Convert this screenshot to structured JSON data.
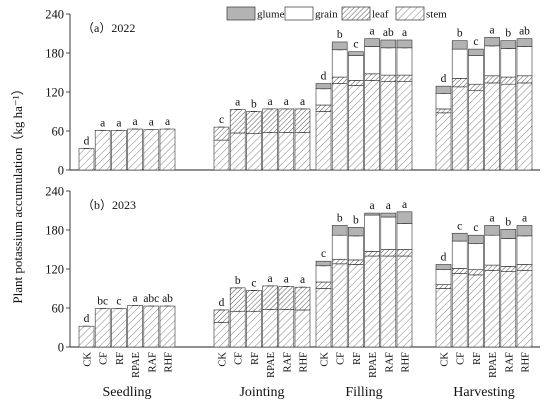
{
  "chart_data": {
    "type": "bar",
    "ylabel": "Plant potassium accumulation（kg ha⁻¹）",
    "ylim": [
      0,
      240
    ],
    "yticks": [
      0,
      60,
      120,
      180,
      240
    ],
    "legend": {
      "placement": "top",
      "items": [
        {
          "key": "glume",
          "label": "glume"
        },
        {
          "key": "grain",
          "label": "grain"
        },
        {
          "key": "leaf",
          "label": "leaf"
        },
        {
          "key": "stem",
          "label": "stem"
        }
      ]
    },
    "treatments": [
      "CK",
      "CF",
      "RF",
      "RPAE",
      "RAF",
      "RHF"
    ],
    "stages": [
      "Seedling",
      "Jointing",
      "Filling",
      "Harvesting"
    ],
    "colors": {
      "glume": "#b3b3b3",
      "grain": "#ffffff",
      "leaf": "#ffffff",
      "stem": "#ffffff",
      "hatch": "#555555",
      "outline": "#333333"
    },
    "panels": [
      {
        "label": "（a）2022",
        "stages": [
          {
            "name": "Seedling",
            "bars": [
              {
                "stem": 33,
                "leaf": 0,
                "grain": 0,
                "glume": 0,
                "letter": "d"
              },
              {
                "stem": 61,
                "leaf": 0,
                "grain": 0,
                "glume": 0,
                "letter": "a"
              },
              {
                "stem": 61,
                "leaf": 0,
                "grain": 0,
                "glume": 0,
                "letter": "a"
              },
              {
                "stem": 63,
                "leaf": 0,
                "grain": 0,
                "glume": 0,
                "letter": "a"
              },
              {
                "stem": 62,
                "leaf": 0,
                "grain": 0,
                "glume": 0,
                "letter": "a"
              },
              {
                "stem": 63,
                "leaf": 0,
                "grain": 0,
                "glume": 0,
                "letter": "a"
              }
            ]
          },
          {
            "name": "Jointing",
            "bars": [
              {
                "stem": 46,
                "leaf": 20,
                "grain": 0,
                "glume": 0,
                "letter": "c"
              },
              {
                "stem": 57,
                "leaf": 36,
                "grain": 0,
                "glume": 0,
                "letter": "a"
              },
              {
                "stem": 56,
                "leaf": 34,
                "grain": 0,
                "glume": 0,
                "letter": "b"
              },
              {
                "stem": 58,
                "leaf": 36,
                "grain": 0,
                "glume": 0,
                "letter": "a"
              },
              {
                "stem": 58,
                "leaf": 36,
                "grain": 0,
                "glume": 0,
                "letter": "a"
              },
              {
                "stem": 58,
                "leaf": 36,
                "grain": 0,
                "glume": 0,
                "letter": "a"
              }
            ]
          },
          {
            "name": "Filling",
            "bars": [
              {
                "stem": 90,
                "leaf": 10,
                "grain": 25,
                "glume": 8,
                "letter": "d"
              },
              {
                "stem": 133,
                "leaf": 10,
                "grain": 42,
                "glume": 12,
                "letter": "b"
              },
              {
                "stem": 130,
                "leaf": 8,
                "grain": 38,
                "glume": 6,
                "letter": "c"
              },
              {
                "stem": 138,
                "leaf": 10,
                "grain": 42,
                "glume": 12,
                "letter": "a"
              },
              {
                "stem": 136,
                "leaf": 10,
                "grain": 42,
                "glume": 12,
                "letter": "ab"
              },
              {
                "stem": 136,
                "leaf": 10,
                "grain": 42,
                "glume": 12,
                "letter": "a"
              }
            ]
          },
          {
            "name": "Harvesting",
            "bars": [
              {
                "stem": 88,
                "leaf": 6,
                "grain": 24,
                "glume": 11,
                "letter": "d"
              },
              {
                "stem": 128,
                "leaf": 13,
                "grain": 45,
                "glume": 13,
                "letter": "b"
              },
              {
                "stem": 122,
                "leaf": 10,
                "grain": 44,
                "glume": 10,
                "letter": "c"
              },
              {
                "stem": 134,
                "leaf": 11,
                "grain": 46,
                "glume": 13,
                "letter": "a"
              },
              {
                "stem": 132,
                "leaf": 11,
                "grain": 44,
                "glume": 12,
                "letter": "b"
              },
              {
                "stem": 134,
                "leaf": 11,
                "grain": 45,
                "glume": 12,
                "letter": "ab"
              }
            ]
          }
        ]
      },
      {
        "label": "（b）2023",
        "stages": [
          {
            "name": "Seedling",
            "bars": [
              {
                "stem": 32,
                "leaf": 0,
                "grain": 0,
                "glume": 0,
                "letter": "d"
              },
              {
                "stem": 59,
                "leaf": 0,
                "grain": 0,
                "glume": 0,
                "letter": "bc"
              },
              {
                "stem": 59,
                "leaf": 0,
                "grain": 0,
                "glume": 0,
                "letter": "c"
              },
              {
                "stem": 64,
                "leaf": 0,
                "grain": 0,
                "glume": 0,
                "letter": "a"
              },
              {
                "stem": 63,
                "leaf": 0,
                "grain": 0,
                "glume": 0,
                "letter": "abc"
              },
              {
                "stem": 63,
                "leaf": 0,
                "grain": 0,
                "glume": 0,
                "letter": "ab"
              }
            ]
          },
          {
            "name": "Jointing",
            "bars": [
              {
                "stem": 38,
                "leaf": 19,
                "grain": 0,
                "glume": 0,
                "letter": "d"
              },
              {
                "stem": 55,
                "leaf": 36,
                "grain": 0,
                "glume": 0,
                "letter": "b"
              },
              {
                "stem": 55,
                "leaf": 32,
                "grain": 0,
                "glume": 0,
                "letter": "c"
              },
              {
                "stem": 58,
                "leaf": 36,
                "grain": 0,
                "glume": 0,
                "letter": "a"
              },
              {
                "stem": 58,
                "leaf": 35,
                "grain": 0,
                "glume": 0,
                "letter": "a"
              },
              {
                "stem": 57,
                "leaf": 35,
                "grain": 0,
                "glume": 0,
                "letter": "a"
              }
            ]
          },
          {
            "name": "Filling",
            "bars": [
              {
                "stem": 90,
                "leaf": 10,
                "grain": 25,
                "glume": 7,
                "letter": "c"
              },
              {
                "stem": 128,
                "leaf": 7,
                "grain": 37,
                "glume": 15,
                "letter": "b"
              },
              {
                "stem": 127,
                "leaf": 7,
                "grain": 37,
                "glume": 13,
                "letter": "b"
              },
              {
                "stem": 140,
                "leaf": 7,
                "grain": 56,
                "glume": 3,
                "letter": "a"
              },
              {
                "stem": 140,
                "leaf": 10,
                "grain": 50,
                "glume": 6,
                "letter": "a"
              },
              {
                "stem": 140,
                "leaf": 10,
                "grain": 40,
                "glume": 18,
                "letter": "a"
              }
            ]
          },
          {
            "name": "Harvesting",
            "bars": [
              {
                "stem": 90,
                "leaf": 6,
                "grain": 23,
                "glume": 8,
                "letter": "d"
              },
              {
                "stem": 113,
                "leaf": 8,
                "grain": 42,
                "glume": 12,
                "letter": "c"
              },
              {
                "stem": 111,
                "leaf": 8,
                "grain": 40,
                "glume": 13,
                "letter": "c"
              },
              {
                "stem": 118,
                "leaf": 8,
                "grain": 46,
                "glume": 15,
                "letter": "a"
              },
              {
                "stem": 116,
                "leaf": 8,
                "grain": 43,
                "glume": 14,
                "letter": "b"
              },
              {
                "stem": 118,
                "leaf": 9,
                "grain": 44,
                "glume": 16,
                "letter": "a"
              }
            ]
          }
        ]
      }
    ]
  }
}
